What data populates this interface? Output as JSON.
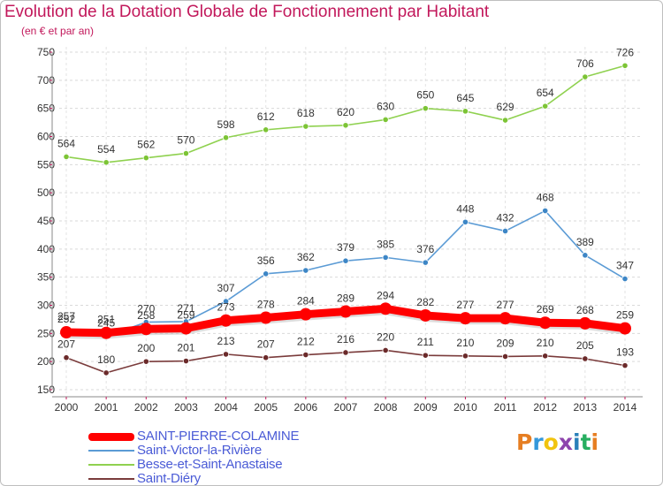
{
  "title": "Evolution de la Dotation Globale de Fonctionnement par Habitant",
  "subtitle": "(en € et par an)",
  "logo": {
    "letters": [
      "P",
      "r",
      "o",
      "x",
      "i",
      "t",
      "i"
    ],
    "colors": [
      "#e67e22",
      "#3498db",
      "#f1c40f",
      "#8e44ad",
      "#2980b9",
      "#27ae60",
      "#e67e22"
    ]
  },
  "chart_data": {
    "type": "line",
    "title": "Evolution de la Dotation Globale de Fonctionnement par Habitant",
    "subtitle": "(en € et par an)",
    "xlabel": "",
    "ylabel": "",
    "x": [
      "2000",
      "2001",
      "2002",
      "2003",
      "2004",
      "2005",
      "2006",
      "2007",
      "2008",
      "2009",
      "2010",
      "2011",
      "2012",
      "2013",
      "2014"
    ],
    "yticks": [
      "150",
      "200",
      "250",
      "300",
      "350",
      "400",
      "450",
      "500",
      "550",
      "600",
      "650",
      "700",
      "750"
    ],
    "ylim": [
      150,
      750
    ],
    "grid": true,
    "legend": "bottom-left",
    "series": [
      {
        "name": "Besse-et-Saint-Anastaise",
        "color": "#8fd14f",
        "marker": "#7cc435",
        "values": [
          564,
          554,
          562,
          570,
          598,
          612,
          618,
          620,
          630,
          650,
          645,
          629,
          654,
          706,
          726
        ]
      },
      {
        "name": "Saint-Victor-la-Rivière",
        "color": "#5b9bd5",
        "marker": "#3d86c6",
        "values": [
          257,
          245,
          270,
          271,
          307,
          356,
          362,
          379,
          385,
          376,
          448,
          432,
          468,
          389,
          347
        ]
      },
      {
        "name": "Saint-Diéry",
        "color": "#7a3b3b",
        "marker": "#6b2a2a",
        "values": [
          207,
          180,
          200,
          201,
          213,
          207,
          212,
          216,
          220,
          211,
          210,
          209,
          210,
          205,
          193
        ]
      },
      {
        "name": "SAINT-PIERRE-COLAMINE",
        "color": "#ff0000",
        "marker": "#ff0000",
        "values": [
          252,
          251,
          258,
          259,
          273,
          278,
          284,
          289,
          294,
          282,
          277,
          277,
          269,
          268,
          259
        ]
      }
    ]
  },
  "legend": [
    {
      "label": "SAINT-PIERRE-COLAMINE",
      "color": "#ff0000",
      "thick": true
    },
    {
      "label": "Saint-Victor-la-Rivière",
      "color": "#5b9bd5",
      "thick": false
    },
    {
      "label": "Besse-et-Saint-Anastaise",
      "color": "#8fd14f",
      "thick": false
    },
    {
      "label": "Saint-Diéry",
      "color": "#7a3b3b",
      "thick": false
    }
  ]
}
